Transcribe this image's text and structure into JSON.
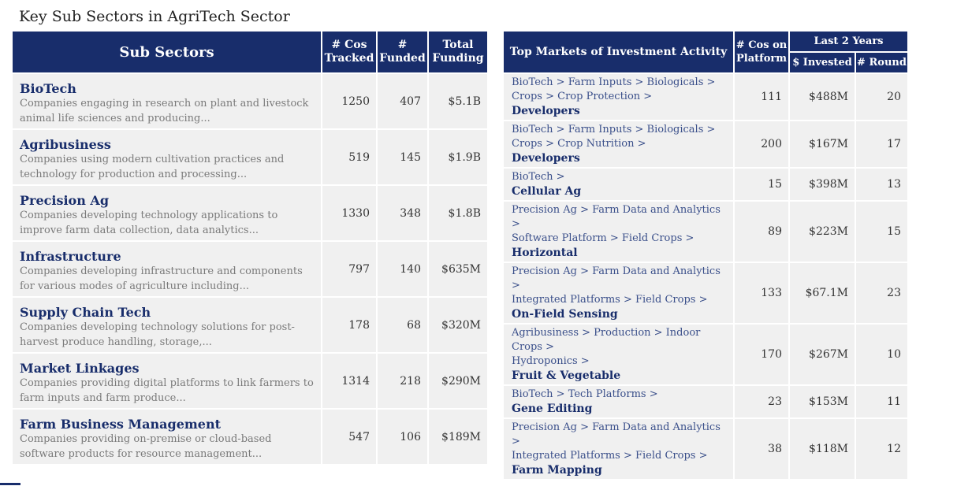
{
  "title": "Key Sub Sectors in AgriTech Sector",
  "left_table": {
    "headers": {
      "sub_sectors": "Sub Sectors",
      "cos_tracked": [
        "# Cos",
        "Tracked"
      ],
      "funded": [
        "#",
        "Funded"
      ],
      "total_funding": [
        "Total",
        "Funding"
      ]
    },
    "rows": [
      {
        "name": "BioTech",
        "desc": "Companies engaging in research on plant and livestock animal life sciences and producing...",
        "tracked": "1250",
        "funded": "407",
        "funding": "$5.1B"
      },
      {
        "name": "Agribusiness",
        "desc": "Companies using modern cultivation practices and technology for production and processing...",
        "tracked": "519",
        "funded": "145",
        "funding": "$1.9B"
      },
      {
        "name": "Precision Ag",
        "desc": "Companies developing technology applications to improve farm data collection, data analytics...",
        "tracked": "1330",
        "funded": "348",
        "funding": "$1.8B"
      },
      {
        "name": "Infrastructure",
        "desc": "Companies developing infrastructure and components for various modes of agriculture including...",
        "tracked": "797",
        "funded": "140",
        "funding": "$635M"
      },
      {
        "name": "Supply Chain Tech",
        "desc": "Companies developing technology solutions for post-harvest produce handling, storage,...",
        "tracked": "178",
        "funded": "68",
        "funding": "$320M"
      },
      {
        "name": "Market Linkages",
        "desc": "Companies providing digital platforms to link farmers to farm inputs and farm produce...",
        "tracked": "1314",
        "funded": "218",
        "funding": "$290M"
      },
      {
        "name": "Farm Business Management",
        "desc": "Companies providing on-premise or cloud-based software products for resource management...",
        "tracked": "547",
        "funded": "106",
        "funding": "$189M"
      }
    ]
  },
  "right_table": {
    "headers": {
      "markets": "Top Markets of Investment Activity",
      "cos_on_platform": [
        "# Cos on",
        "Platform"
      ],
      "last_2_years": "Last 2 Years",
      "invested": "$ Invested",
      "round": "# Round"
    },
    "rows": [
      {
        "path": [
          "BioTech > Farm Inputs > Biologicals >",
          "Crops > Crop Protection >"
        ],
        "name": "Developers",
        "cos": "111",
        "invested": "$488M",
        "round": "20"
      },
      {
        "path": [
          "BioTech > Farm Inputs > Biologicals >",
          "Crops > Crop Nutrition >"
        ],
        "name": "Developers",
        "cos": "200",
        "invested": "$167M",
        "round": "17"
      },
      {
        "path": [
          "BioTech >"
        ],
        "name": "Cellular Ag",
        "cos": "15",
        "invested": "$398M",
        "round": "13"
      },
      {
        "path": [
          "Precision Ag > Farm Data and Analytics >",
          "Software Platform > Field Crops >"
        ],
        "name": "Horizontal",
        "cos": "89",
        "invested": "$223M",
        "round": "15"
      },
      {
        "path": [
          "Precision Ag > Farm Data and Analytics >",
          "Integrated Platforms > Field Crops >"
        ],
        "name": "On-Field Sensing",
        "cos": "133",
        "invested": "$67.1M",
        "round": "23"
      },
      {
        "path": [
          "Agribusiness > Production > Indoor Crops >",
          "Hydroponics >"
        ],
        "name": "Fruit & Vegetable",
        "cos": "170",
        "invested": "$267M",
        "round": "10"
      },
      {
        "path": [
          "BioTech > Tech Platforms >"
        ],
        "name": "Gene Editing",
        "cos": "23",
        "invested": "$153M",
        "round": "11"
      },
      {
        "path": [
          "Precision Ag > Farm Data and Analytics >",
          "Integrated Platforms > Field Crops >"
        ],
        "name": "Farm Mapping",
        "cos": "38",
        "invested": "$118M",
        "round": "12"
      }
    ]
  }
}
